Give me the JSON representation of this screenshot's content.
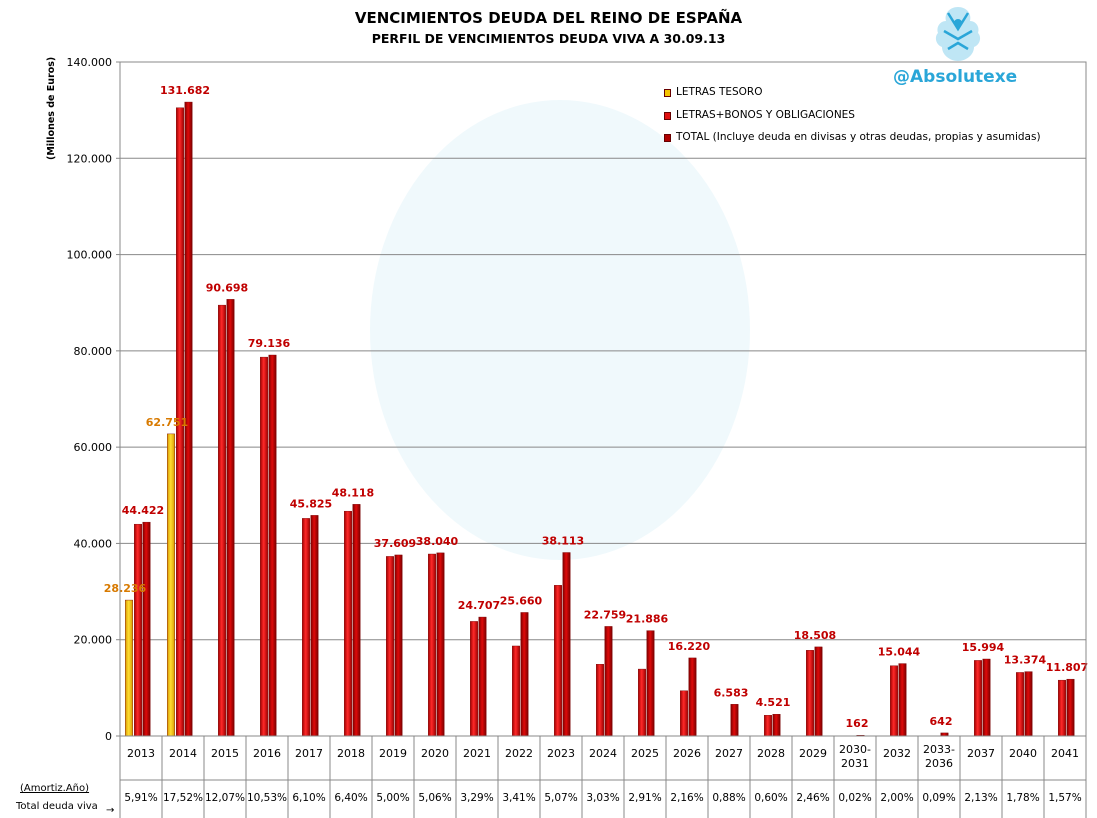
{
  "header": {
    "title": "VENCIMIENTOS DEUDA DEL REINO DE ESPAÑA",
    "subtitle": "PERFIL DE VENCIMIENTOS DEUDA VIVA A 30.09.13",
    "brand": "@Absolutexe",
    "y_axis_label": "(Millones de Euros)"
  },
  "legend": [
    {
      "label": "LETRAS TESORO",
      "color": "#f5c400"
    },
    {
      "label": "LETRAS+BONOS Y OBLIGACIONES",
      "color": "#e01010"
    },
    {
      "label": "TOTAL (Incluye deuda en divisas y otras deudas, propias y asumidas)",
      "color": "#b00000"
    }
  ],
  "table": {
    "row1_label": "(Amortiz.Año)",
    "row2_label": "Total deuda  viva",
    "arrow": "→"
  },
  "chart_data": {
    "type": "bar",
    "ylim": [
      0,
      140000
    ],
    "yticks": [
      "0",
      "20.000",
      "40.000",
      "60.000",
      "80.000",
      "100.000",
      "120.000",
      "140.000"
    ],
    "ytick_values": [
      0,
      20000,
      40000,
      60000,
      80000,
      100000,
      120000,
      140000
    ],
    "grid": true,
    "legend_position": "top-right",
    "categories": [
      "2013",
      "2014",
      "2015",
      "2016",
      "2017",
      "2018",
      "2019",
      "2020",
      "2021",
      "2022",
      "2023",
      "2024",
      "2025",
      "2026",
      "2027",
      "2028",
      "2029",
      "2030-\n2031",
      "2032",
      "2033-\n2036",
      "2037",
      "2040",
      "2041"
    ],
    "series": [
      {
        "name": "LETRAS TESORO",
        "color": "#f5c400",
        "values": [
          28236,
          62751,
          null,
          null,
          null,
          null,
          null,
          null,
          null,
          null,
          null,
          null,
          null,
          null,
          null,
          null,
          null,
          null,
          null,
          null,
          null,
          null,
          null
        ],
        "labels": [
          "28.236",
          "62.751",
          null,
          null,
          null,
          null,
          null,
          null,
          null,
          null,
          null,
          null,
          null,
          null,
          null,
          null,
          null,
          null,
          null,
          null,
          null,
          null,
          null
        ]
      },
      {
        "name": "LETRAS+BONOS Y OBLIGACIONES",
        "color": "#e01010",
        "values": [
          44000,
          130500,
          89500,
          78700,
          45200,
          46700,
          37300,
          37800,
          23800,
          18700,
          31300,
          14900,
          13900,
          9400,
          null,
          4300,
          17800,
          null,
          14600,
          null,
          15700,
          13200,
          11600
        ],
        "labels": [
          null,
          null,
          null,
          null,
          null,
          null,
          null,
          null,
          null,
          null,
          null,
          null,
          null,
          null,
          null,
          null,
          null,
          null,
          null,
          null,
          null,
          null,
          null
        ]
      },
      {
        "name": "TOTAL (Incluye deuda en divisas y otras deudas, propias y asumidas)",
        "color": "#b00000",
        "values": [
          44422,
          131682,
          90698,
          79136,
          45825,
          48118,
          37609,
          38040,
          24707,
          25660,
          38113,
          22759,
          21886,
          16220,
          6583,
          4521,
          18508,
          162,
          15044,
          642,
          15994,
          13374,
          11807
        ],
        "labels": [
          "44.422",
          "131.682",
          "90.698",
          "79.136",
          "45.825",
          "48.118",
          "37.609",
          "38.040",
          "24.707",
          "25.660",
          "38.113",
          "22.759",
          "21.886",
          "16.220",
          "6.583",
          "4.521",
          "18.508",
          "162",
          "15.044",
          "642",
          "15.994",
          "13.374",
          "11.807"
        ]
      }
    ],
    "percent_row": [
      "5,91%",
      "17,52%",
      "12,07%",
      "10,53%",
      "6,10%",
      "6,40%",
      "5,00%",
      "5,06%",
      "3,29%",
      "3,41%",
      "5,07%",
      "3,03%",
      "2,91%",
      "2,16%",
      "0,88%",
      "0,60%",
      "2,46%",
      "0,02%",
      "2,00%",
      "0,09%",
      "2,13%",
      "1,78%",
      "1,57%"
    ]
  }
}
